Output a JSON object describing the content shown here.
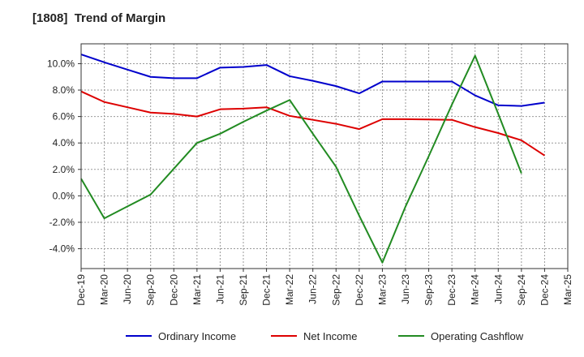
{
  "chart_data": {
    "type": "line",
    "title": "[1808]  Trend of Margin",
    "xlabel": "",
    "ylabel": "",
    "categories": [
      "Dec-19",
      "Mar-20",
      "Jun-20",
      "Sep-20",
      "Dec-20",
      "Mar-21",
      "Jun-21",
      "Sep-21",
      "Dec-21",
      "Mar-22",
      "Jun-22",
      "Sep-22",
      "Dec-22",
      "Mar-23",
      "Jun-23",
      "Sep-23",
      "Dec-23",
      "Mar-24",
      "Jun-24",
      "Sep-24",
      "Dec-24",
      "Mar-25"
    ],
    "ylim": [
      -5.5,
      11.5
    ],
    "yticks": [
      -4.0,
      -2.0,
      0.0,
      2.0,
      4.0,
      6.0,
      8.0,
      10.0
    ],
    "ytick_labels": [
      "-4.0%",
      "-2.0%",
      "0.0%",
      "2.0%",
      "4.0%",
      "6.0%",
      "8.0%",
      "10.0%"
    ],
    "grid": true,
    "legend_position": "bottom",
    "series": [
      {
        "name": "Ordinary Income",
        "color": "#0000cc",
        "values": [
          10.7,
          10.1,
          9.55,
          9.0,
          8.9,
          8.9,
          9.7,
          9.75,
          9.9,
          9.05,
          8.7,
          8.3,
          7.75,
          8.65,
          8.65,
          8.65,
          8.65,
          7.6,
          6.85,
          6.8,
          7.05,
          null
        ]
      },
      {
        "name": "Net Income",
        "color": "#dd0000",
        "values": [
          7.9,
          7.1,
          6.7,
          6.3,
          6.2,
          6.0,
          6.55,
          6.6,
          6.7,
          6.05,
          5.75,
          5.45,
          5.05,
          5.8,
          5.8,
          5.78,
          5.75,
          5.2,
          4.75,
          4.2,
          3.05,
          null
        ]
      },
      {
        "name": "Operating Cashflow",
        "color": "#228b22",
        "values": [
          1.3,
          -1.7,
          -0.8,
          0.1,
          2.05,
          4.0,
          4.7,
          5.6,
          6.45,
          7.25,
          4.7,
          2.2,
          -1.5,
          -5.05,
          -0.8,
          3.0,
          6.9,
          10.6,
          6.2,
          1.7,
          null,
          null
        ]
      }
    ]
  }
}
